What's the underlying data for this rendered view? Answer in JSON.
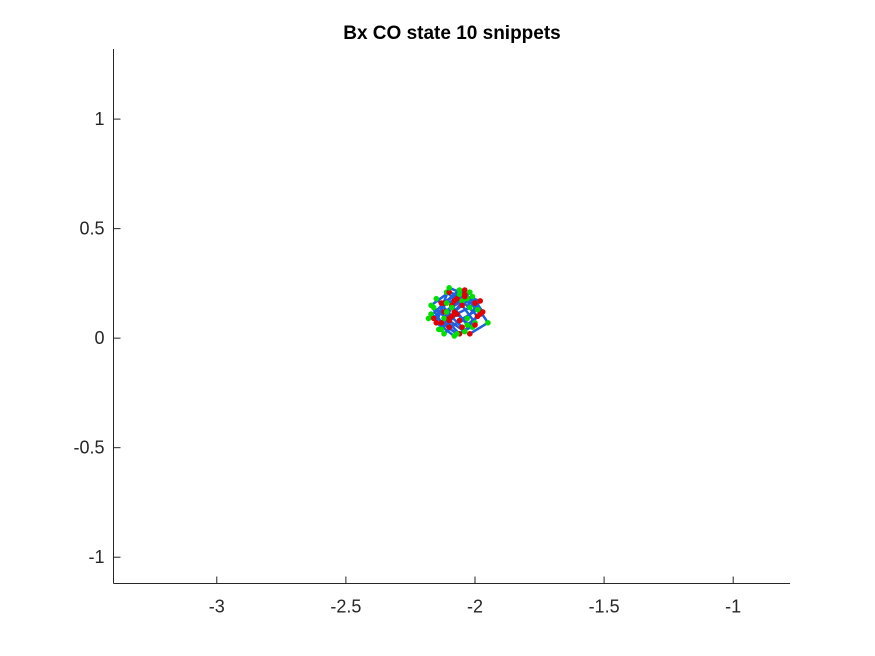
{
  "chart_data": {
    "type": "line",
    "title": "Bx  CO state 10 snippets",
    "xlabel": "",
    "ylabel": "",
    "xlim": [
      -3.4,
      -0.78
    ],
    "ylim": [
      -1.12,
      1.32
    ],
    "xticks": [
      -3,
      -2.5,
      -2,
      -1.5,
      -1
    ],
    "xtick_labels": [
      "-3",
      "-2.5",
      "-2",
      "-1.5",
      "-1"
    ],
    "yticks": [
      -1,
      -0.5,
      0,
      0.5,
      1
    ],
    "ytick_labels": [
      "-1",
      "-0.5",
      "0",
      "0.5",
      "1"
    ],
    "grid": false,
    "colors": {
      "line": "#1f5fe0",
      "start_marker": "#00e000",
      "end_marker": "#e00000",
      "axis": "#262626"
    },
    "series": [
      {
        "x": [
          -2.16,
          -2.1,
          -2.04,
          -1.99,
          -2.05,
          -2.12
        ],
        "y": [
          0.14,
          0.08,
          0.03,
          0.1,
          0.17,
          0.12
        ]
      },
      {
        "x": [
          -2.14,
          -2.08,
          -2.01,
          -1.97,
          -2.03,
          -2.09
        ],
        "y": [
          0.04,
          0.12,
          0.19,
          0.12,
          0.06,
          0.15
        ]
      },
      {
        "x": [
          -2.11,
          -2.05,
          -2.0,
          -2.06,
          -2.12,
          -2.07
        ],
        "y": [
          0.21,
          0.15,
          0.07,
          0.02,
          0.09,
          0.18
        ]
      },
      {
        "x": [
          -2.18,
          -2.12,
          -2.06,
          -2.0,
          -1.95,
          -2.02
        ],
        "y": [
          0.09,
          0.16,
          0.22,
          0.16,
          0.07,
          0.02
        ]
      },
      {
        "x": [
          -2.07,
          -2.13,
          -2.17,
          -2.1,
          -2.03,
          -1.98
        ],
        "y": [
          0.02,
          0.07,
          0.15,
          0.21,
          0.18,
          0.11
        ]
      },
      {
        "x": [
          -2.15,
          -2.09,
          -2.02,
          -2.04,
          -2.11,
          -2.05
        ],
        "y": [
          0.18,
          0.1,
          0.14,
          0.22,
          0.12,
          0.05
        ]
      },
      {
        "x": [
          -2.01,
          -2.07,
          -2.13,
          -2.08,
          -2.02,
          -2.1
        ],
        "y": [
          0.05,
          0.11,
          0.04,
          0.17,
          0.21,
          0.09
        ]
      },
      {
        "x": [
          -2.17,
          -2.1,
          -2.03,
          -1.98,
          -2.06,
          -2.13
        ],
        "y": [
          0.11,
          0.05,
          0.09,
          0.17,
          0.2,
          0.16
        ]
      },
      {
        "x": [
          -2.09,
          -2.04,
          -2.1,
          -2.15,
          -2.08,
          -2.0
        ],
        "y": [
          0.14,
          0.2,
          0.23,
          0.07,
          0.01,
          0.06
        ]
      },
      {
        "x": [
          -2.12,
          -2.06,
          -1.99,
          -2.04,
          -2.11,
          -2.16
        ],
        "y": [
          0.02,
          0.08,
          0.13,
          0.19,
          0.16,
          0.09
        ]
      }
    ]
  }
}
